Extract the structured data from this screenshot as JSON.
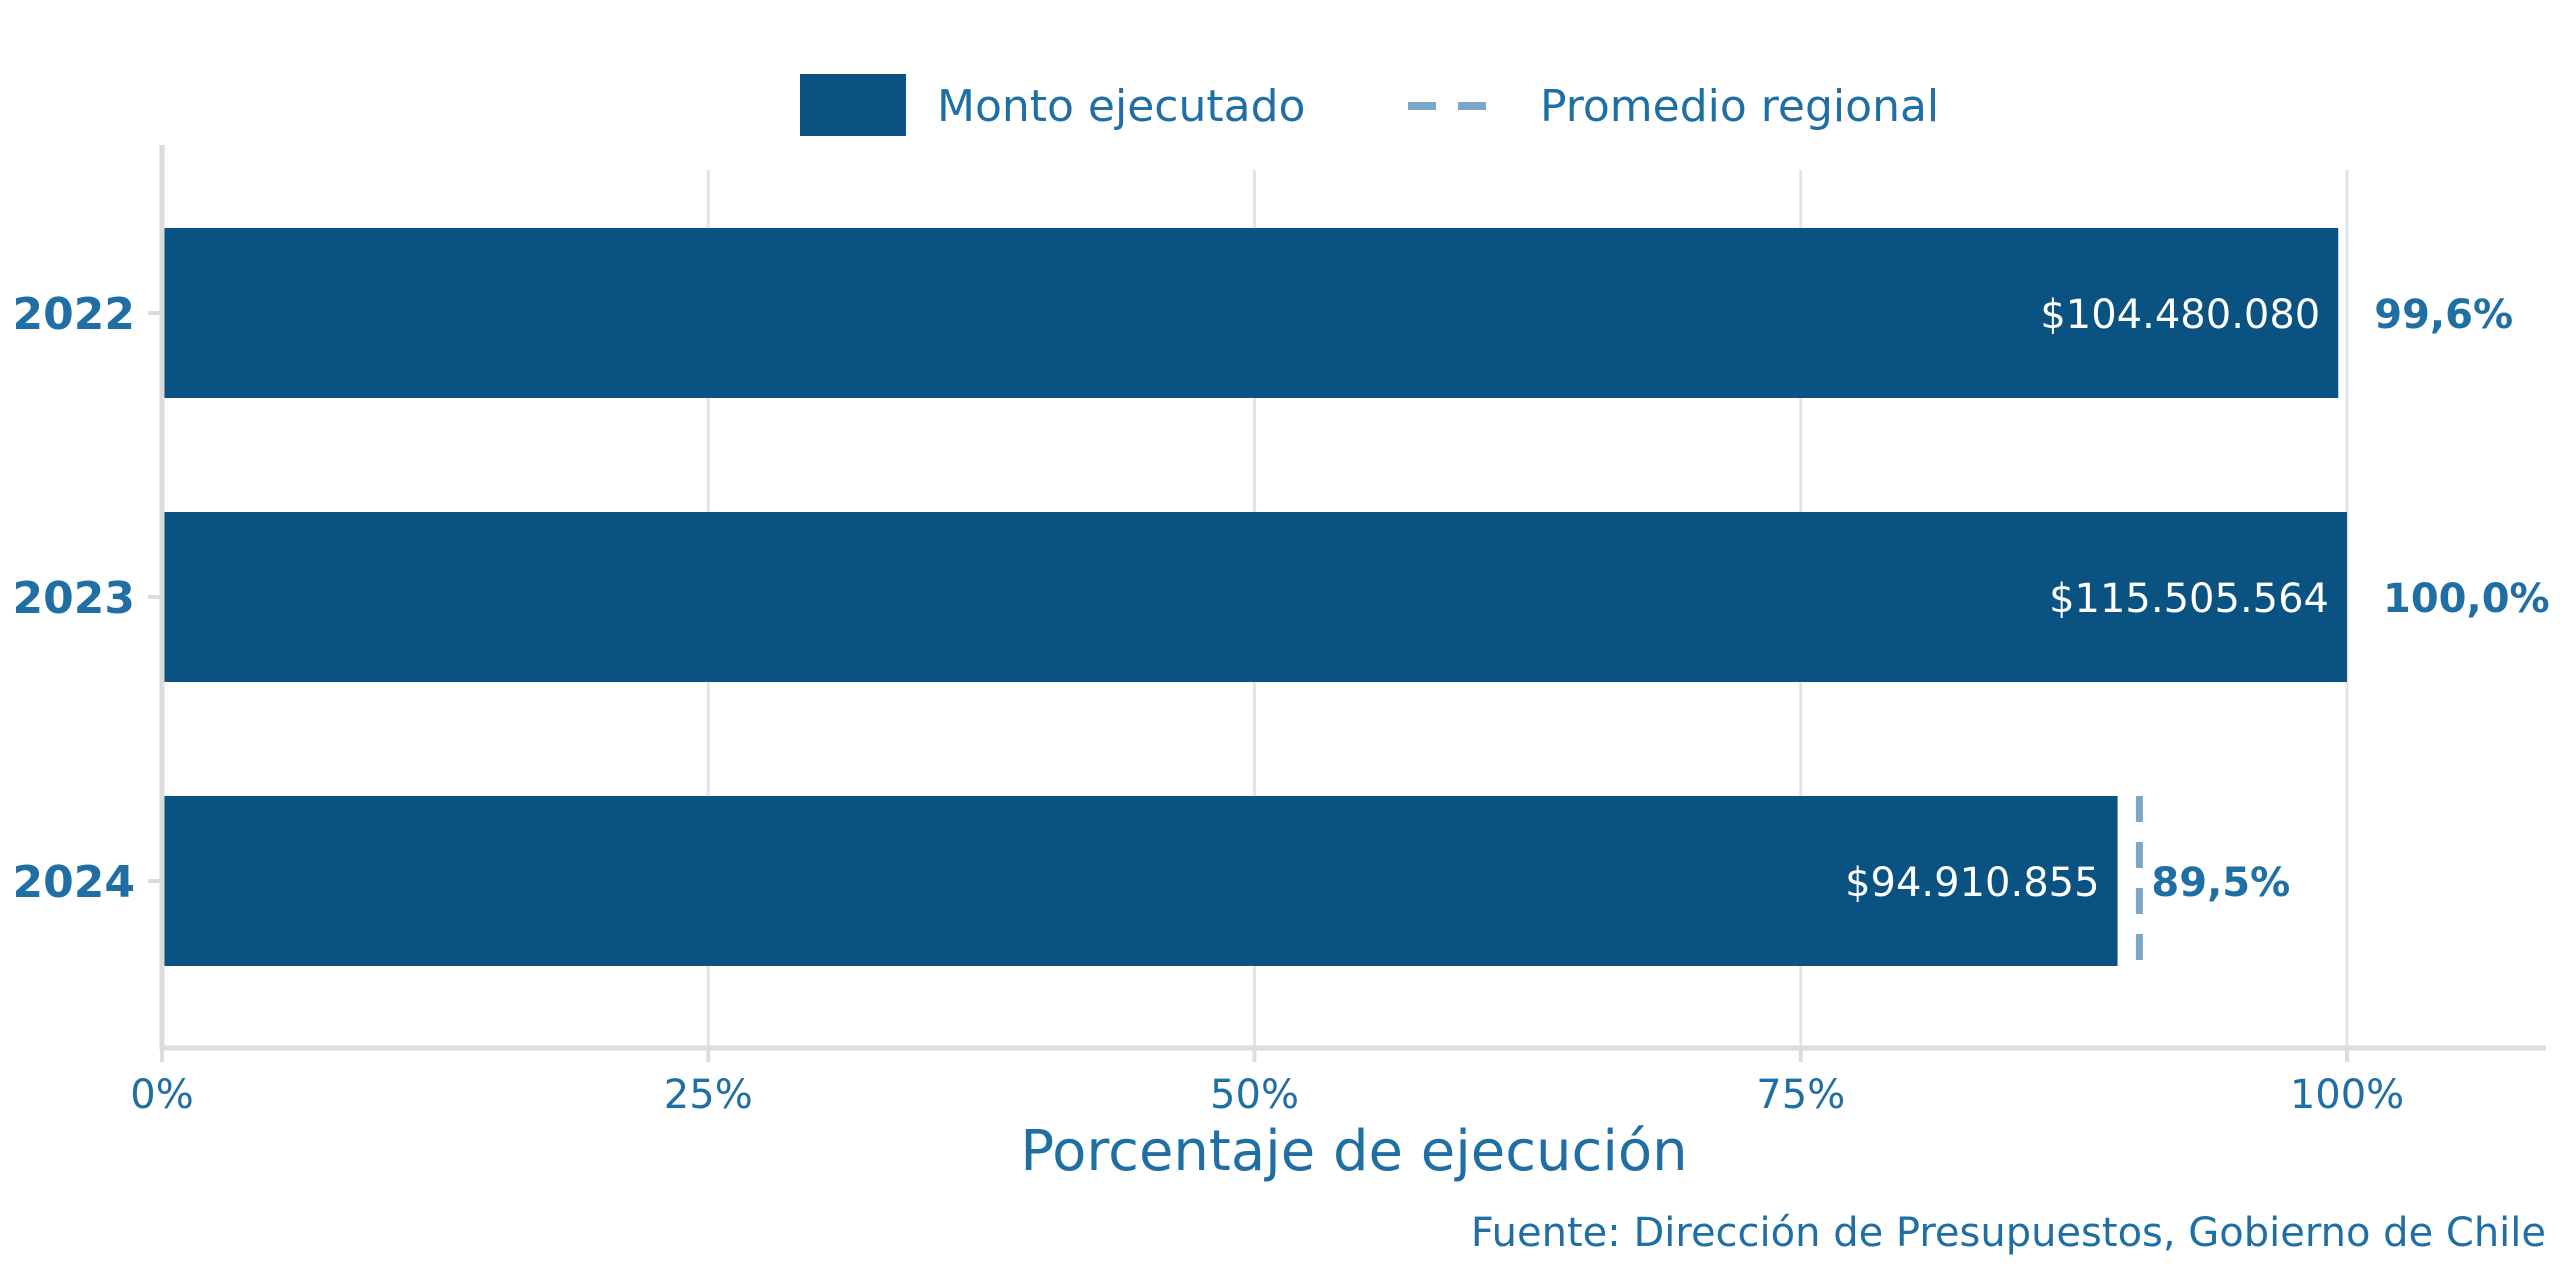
{
  "chart_data": {
    "type": "bar",
    "orientation": "horizontal",
    "categories": [
      "2022",
      "2023",
      "2024"
    ],
    "values": [
      99.6,
      100.0,
      89.5
    ],
    "value_labels": [
      "99,6%",
      "100,0%",
      "89,5%"
    ],
    "amount_labels": [
      "$104.480.080",
      "$115.505.564",
      "$94.910.855"
    ],
    "series": [
      {
        "name": "Monto ejecutado",
        "values": [
          99.6,
          100.0,
          89.5
        ]
      }
    ],
    "reference_line": {
      "name": "Promedio regional",
      "value": 90.5,
      "applies_to": "2024"
    },
    "legend": {
      "position": "top",
      "items": [
        "Monto ejecutado",
        "Promedio regional"
      ]
    },
    "xlabel": "Porcentaje de ejecución",
    "ylabel": "",
    "xlim": [
      0,
      108
    ],
    "x_ticks": [
      0,
      25,
      50,
      75,
      100
    ],
    "x_tick_labels": [
      "0%",
      "25%",
      "50%",
      "75%",
      "100%"
    ],
    "grid": true,
    "caption": "Fuente: Dirección de Presupuestos, Gobierno de Chile"
  },
  "colors": {
    "bar": "#0a5282",
    "text": "#1f6fa5",
    "reference_line": "#7ba7c7",
    "grid": "#e5e5e5",
    "axis": "#dcdcdc"
  }
}
